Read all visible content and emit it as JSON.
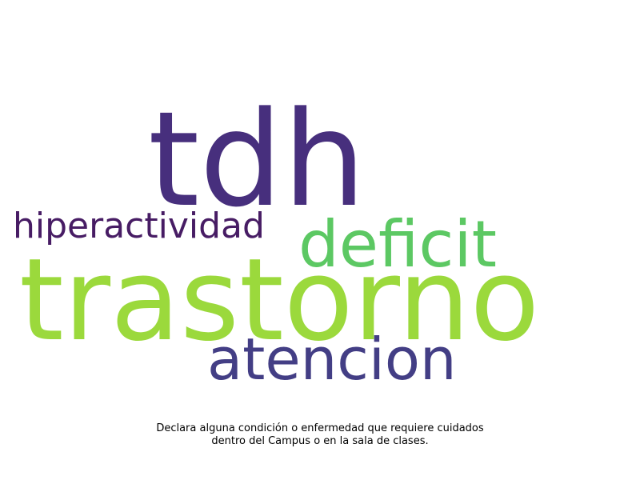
{
  "wordcloud": {
    "words": [
      {
        "key": "tdh",
        "text": "tdh",
        "color": "#472f7d"
      },
      {
        "key": "hiperactividad",
        "text": "hiperactividad",
        "color": "#471c64"
      },
      {
        "key": "deficit",
        "text": "deficit",
        "color": "#5cc863"
      },
      {
        "key": "trastorno",
        "text": "trastorno",
        "color": "#9bd93c"
      },
      {
        "key": "atencion",
        "text": "atencion",
        "color": "#433e85"
      }
    ]
  },
  "caption": {
    "line1": "Declara alguna condición o enfermedad que requiere cuidados",
    "line2": "dentro del Campus o en la sala de clases."
  }
}
